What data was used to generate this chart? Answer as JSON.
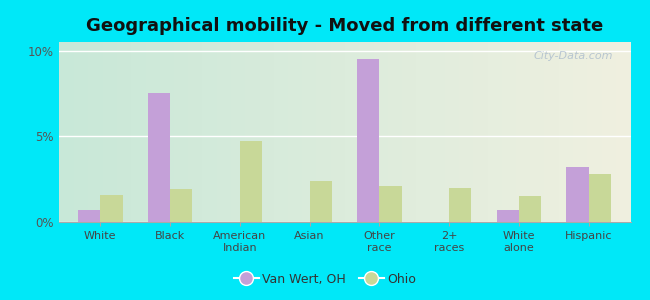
{
  "title": "Geographical mobility - Moved from different state",
  "categories": [
    "White",
    "Black",
    "American\nIndian",
    "Asian",
    "Other\nrace",
    "2+\nraces",
    "White\nalone",
    "Hispanic"
  ],
  "van_wert": [
    0.7,
    7.5,
    0.0,
    0.0,
    9.5,
    0.0,
    0.7,
    3.2
  ],
  "ohio": [
    1.6,
    1.9,
    4.7,
    2.4,
    2.1,
    2.0,
    1.5,
    2.8
  ],
  "bar_color_vanwert": "#c4a0d8",
  "bar_color_ohio": "#c8d898",
  "ylim_max": 10.5,
  "yticks": [
    0,
    5,
    10
  ],
  "ytick_labels": [
    "0%",
    "5%",
    "10%"
  ],
  "outer_bg": "#00e8f8",
  "legend_vanwert": "Van Wert, OH",
  "legend_ohio": "Ohio",
  "title_fontsize": 13,
  "watermark": "City-Data.com",
  "grad_color_topleft": "#c8e8d8",
  "grad_color_right": "#f0f0e0"
}
